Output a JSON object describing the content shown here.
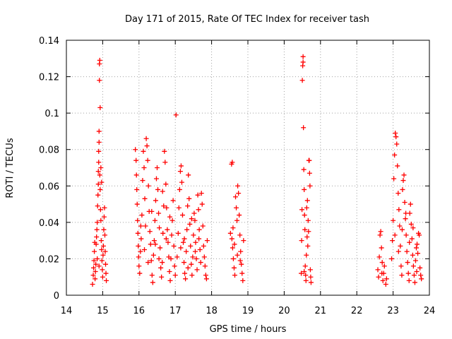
{
  "chart_data": {
    "type": "scatter",
    "title": "Day 171 of 2015, Rate Of TEC Index for receiver tash",
    "xlabel": "GPS time / hours",
    "ylabel": "ROTI / TECUs",
    "xlim": [
      14,
      24
    ],
    "ylim": [
      0,
      0.14
    ],
    "x_ticks": [
      "14",
      "15",
      "16",
      "17",
      "18",
      "19",
      "20",
      "21",
      "22",
      "23",
      "24"
    ],
    "y_ticks": [
      "0",
      "0.02",
      "0.04",
      "0.06",
      "0.08",
      "0.1",
      "0.12",
      "0.14"
    ],
    "x_tick_values": [
      14,
      15,
      16,
      17,
      18,
      19,
      20,
      21,
      22,
      23,
      24
    ],
    "y_tick_values": [
      0,
      0.02,
      0.04,
      0.06,
      0.08,
      0.1,
      0.12,
      0.14
    ],
    "grid": true,
    "marker": "+",
    "color": "#ff0000",
    "series": [
      {
        "name": "ROTI",
        "points": [
          [
            14.72,
            0.006
          ],
          [
            14.74,
            0.011
          ],
          [
            14.75,
            0.015
          ],
          [
            14.76,
            0.019
          ],
          [
            14.77,
            0.024
          ],
          [
            14.78,
            0.029
          ],
          [
            14.79,
            0.009
          ],
          [
            14.8,
            0.013
          ],
          [
            14.81,
            0.017
          ],
          [
            14.82,
            0.028
          ],
          [
            14.83,
            0.032
          ],
          [
            14.84,
            0.036
          ],
          [
            14.85,
            0.04
          ],
          [
            14.86,
            0.049
          ],
          [
            14.87,
            0.055
          ],
          [
            14.88,
            0.061
          ],
          [
            14.88,
            0.068
          ],
          [
            14.89,
            0.073
          ],
          [
            14.89,
            0.079
          ],
          [
            14.9,
            0.084
          ],
          [
            14.9,
            0.09
          ],
          [
            14.91,
            0.118
          ],
          [
            14.91,
            0.127
          ],
          [
            14.92,
            0.129
          ],
          [
            14.93,
            0.103
          ],
          [
            14.92,
            0.066
          ],
          [
            14.93,
            0.058
          ],
          [
            14.94,
            0.047
          ],
          [
            14.95,
            0.041
          ],
          [
            14.96,
            0.03
          ],
          [
            14.97,
            0.025
          ],
          [
            14.98,
            0.019
          ],
          [
            14.99,
            0.014
          ],
          [
            15.0,
            0.01
          ],
          [
            15.01,
            0.022
          ],
          [
            15.02,
            0.027
          ],
          [
            15.03,
            0.036
          ],
          [
            15.04,
            0.043
          ],
          [
            15.05,
            0.048
          ],
          [
            15.06,
            0.033
          ],
          [
            15.07,
            0.024
          ],
          [
            15.08,
            0.017
          ],
          [
            15.09,
            0.012
          ],
          [
            15.1,
            0.008
          ],
          [
            14.95,
            0.07
          ],
          [
            14.97,
            0.062
          ],
          [
            14.85,
            0.02
          ],
          [
            14.9,
            0.016
          ],
          [
            15.9,
            0.08
          ],
          [
            15.92,
            0.074
          ],
          [
            15.93,
            0.066
          ],
          [
            15.94,
            0.058
          ],
          [
            15.95,
            0.05
          ],
          [
            15.96,
            0.041
          ],
          [
            15.97,
            0.034
          ],
          [
            15.98,
            0.027
          ],
          [
            15.99,
            0.021
          ],
          [
            16.0,
            0.016
          ],
          [
            16.02,
            0.012
          ],
          [
            16.04,
            0.024
          ],
          [
            16.06,
            0.031
          ],
          [
            16.08,
            0.044
          ],
          [
            16.1,
            0.063
          ],
          [
            16.12,
            0.079
          ],
          [
            16.14,
            0.07
          ],
          [
            16.16,
            0.053
          ],
          [
            16.18,
            0.038
          ],
          [
            16.2,
            0.086
          ],
          [
            16.22,
            0.082
          ],
          [
            16.24,
            0.074
          ],
          [
            16.26,
            0.06
          ],
          [
            16.28,
            0.046
          ],
          [
            16.3,
            0.035
          ],
          [
            16.32,
            0.028
          ],
          [
            16.34,
            0.019
          ],
          [
            16.36,
            0.011
          ],
          [
            16.38,
            0.007
          ],
          [
            16.4,
            0.022
          ],
          [
            16.42,
            0.03
          ],
          [
            16.44,
            0.041
          ],
          [
            16.46,
            0.052
          ],
          [
            16.48,
            0.064
          ],
          [
            16.5,
            0.07
          ],
          [
            16.52,
            0.058
          ],
          [
            16.54,
            0.045
          ],
          [
            16.56,
            0.037
          ],
          [
            16.58,
            0.026
          ],
          [
            16.6,
            0.015
          ],
          [
            16.62,
            0.01
          ],
          [
            16.64,
            0.018
          ],
          [
            16.66,
            0.034
          ],
          [
            16.68,
            0.049
          ],
          [
            16.7,
            0.079
          ],
          [
            16.72,
            0.073
          ],
          [
            16.74,
            0.061
          ],
          [
            16.76,
            0.048
          ],
          [
            16.78,
            0.036
          ],
          [
            16.8,
            0.029
          ],
          [
            16.82,
            0.021
          ],
          [
            16.84,
            0.013
          ],
          [
            16.86,
            0.008
          ],
          [
            16.88,
            0.02
          ],
          [
            16.9,
            0.033
          ],
          [
            16.92,
            0.041
          ],
          [
            16.94,
            0.052
          ],
          [
            16.96,
            0.027
          ],
          [
            16.98,
            0.016
          ],
          [
            17.0,
            0.011
          ],
          [
            17.02,
            0.099
          ],
          [
            16.05,
            0.038
          ],
          [
            16.15,
            0.025
          ],
          [
            16.25,
            0.018
          ],
          [
            16.35,
            0.046
          ],
          [
            16.45,
            0.028
          ],
          [
            16.55,
            0.02
          ],
          [
            16.65,
            0.057
          ],
          [
            16.75,
            0.031
          ],
          [
            16.85,
            0.043
          ],
          [
            17.05,
            0.021
          ],
          [
            17.08,
            0.034
          ],
          [
            17.1,
            0.048
          ],
          [
            17.12,
            0.058
          ],
          [
            17.14,
            0.068
          ],
          [
            17.16,
            0.071
          ],
          [
            17.18,
            0.062
          ],
          [
            17.2,
            0.044
          ],
          [
            17.22,
            0.029
          ],
          [
            17.24,
            0.018
          ],
          [
            17.26,
            0.012
          ],
          [
            17.28,
            0.009
          ],
          [
            17.3,
            0.024
          ],
          [
            17.32,
            0.036
          ],
          [
            17.34,
            0.049
          ],
          [
            17.36,
            0.066
          ],
          [
            17.38,
            0.053
          ],
          [
            17.4,
            0.039
          ],
          [
            17.42,
            0.027
          ],
          [
            17.44,
            0.017
          ],
          [
            17.46,
            0.011
          ],
          [
            17.48,
            0.021
          ],
          [
            17.5,
            0.033
          ],
          [
            17.52,
            0.045
          ],
          [
            17.54,
            0.041
          ],
          [
            17.56,
            0.029
          ],
          [
            17.58,
            0.02
          ],
          [
            17.6,
            0.014
          ],
          [
            17.62,
            0.055
          ],
          [
            17.64,
            0.047
          ],
          [
            17.66,
            0.036
          ],
          [
            17.68,
            0.025
          ],
          [
            17.7,
            0.018
          ],
          [
            17.72,
            0.056
          ],
          [
            17.74,
            0.05
          ],
          [
            17.76,
            0.038
          ],
          [
            17.78,
            0.027
          ],
          [
            17.8,
            0.021
          ],
          [
            17.82,
            0.016
          ],
          [
            17.84,
            0.011
          ],
          [
            17.86,
            0.009
          ],
          [
            17.88,
            0.03
          ],
          [
            17.25,
            0.031
          ],
          [
            17.45,
            0.042
          ],
          [
            17.65,
            0.031
          ],
          [
            17.35,
            0.015
          ],
          [
            17.55,
            0.024
          ],
          [
            17.15,
            0.026
          ],
          [
            18.52,
            0.034
          ],
          [
            18.55,
            0.072
          ],
          [
            18.57,
            0.073
          ],
          [
            18.58,
            0.026
          ],
          [
            18.6,
            0.02
          ],
          [
            18.62,
            0.015
          ],
          [
            18.64,
            0.011
          ],
          [
            18.66,
            0.054
          ],
          [
            18.68,
            0.048
          ],
          [
            18.7,
            0.041
          ],
          [
            18.72,
            0.06
          ],
          [
            18.74,
            0.056
          ],
          [
            18.76,
            0.044
          ],
          [
            18.78,
            0.033
          ],
          [
            18.8,
            0.024
          ],
          [
            18.82,
            0.017
          ],
          [
            18.84,
            0.012
          ],
          [
            18.86,
            0.008
          ],
          [
            18.88,
            0.03
          ],
          [
            18.56,
            0.031
          ],
          [
            18.63,
            0.028
          ],
          [
            18.71,
            0.022
          ],
          [
            18.79,
            0.019
          ],
          [
            18.59,
            0.037
          ],
          [
            20.47,
            0.012
          ],
          [
            20.48,
            0.03
          ],
          [
            20.49,
            0.047
          ],
          [
            20.5,
            0.118
          ],
          [
            20.51,
            0.126
          ],
          [
            20.52,
            0.131
          ],
          [
            20.52,
            0.128
          ],
          [
            20.53,
            0.092
          ],
          [
            20.54,
            0.069
          ],
          [
            20.55,
            0.058
          ],
          [
            20.56,
            0.044
          ],
          [
            20.57,
            0.036
          ],
          [
            20.58,
            0.016
          ],
          [
            20.59,
            0.011
          ],
          [
            20.6,
            0.008
          ],
          [
            20.62,
            0.048
          ],
          [
            20.64,
            0.052
          ],
          [
            20.66,
            0.041
          ],
          [
            20.68,
            0.074
          ],
          [
            20.69,
            0.074
          ],
          [
            20.7,
            0.067
          ],
          [
            20.71,
            0.06
          ],
          [
            20.72,
            0.014
          ],
          [
            20.73,
            0.01
          ],
          [
            20.74,
            0.007
          ],
          [
            20.61,
            0.022
          ],
          [
            20.63,
            0.032
          ],
          [
            20.65,
            0.027
          ],
          [
            20.55,
            0.013
          ],
          [
            20.67,
            0.035
          ],
          [
            22.58,
            0.014
          ],
          [
            22.6,
            0.01
          ],
          [
            22.62,
            0.021
          ],
          [
            22.64,
            0.033
          ],
          [
            22.66,
            0.035
          ],
          [
            22.68,
            0.026
          ],
          [
            22.7,
            0.018
          ],
          [
            22.72,
            0.008
          ],
          [
            22.74,
            0.012
          ],
          [
            22.76,
            0.016
          ],
          [
            22.8,
            0.006
          ],
          [
            22.82,
            0.009
          ],
          [
            22.96,
            0.02
          ],
          [
            22.98,
            0.03
          ],
          [
            23.0,
            0.041
          ],
          [
            23.02,
            0.064
          ],
          [
            23.04,
            0.077
          ],
          [
            23.06,
            0.089
          ],
          [
            23.08,
            0.087
          ],
          [
            23.1,
            0.083
          ],
          [
            23.12,
            0.071
          ],
          [
            23.14,
            0.056
          ],
          [
            23.16,
            0.047
          ],
          [
            23.18,
            0.038
          ],
          [
            23.2,
            0.027
          ],
          [
            23.22,
            0.016
          ],
          [
            23.24,
            0.011
          ],
          [
            23.26,
            0.058
          ],
          [
            23.28,
            0.063
          ],
          [
            23.3,
            0.066
          ],
          [
            23.32,
            0.051
          ],
          [
            23.34,
            0.042
          ],
          [
            23.36,
            0.033
          ],
          [
            23.38,
            0.024
          ],
          [
            23.4,
            0.018
          ],
          [
            23.42,
            0.012
          ],
          [
            23.44,
            0.008
          ],
          [
            23.46,
            0.045
          ],
          [
            23.48,
            0.05
          ],
          [
            23.5,
            0.039
          ],
          [
            23.52,
            0.031
          ],
          [
            23.54,
            0.022
          ],
          [
            23.56,
            0.016
          ],
          [
            23.58,
            0.011
          ],
          [
            23.6,
            0.007
          ],
          [
            23.62,
            0.019
          ],
          [
            23.64,
            0.026
          ],
          [
            23.66,
            0.028
          ],
          [
            23.68,
            0.023
          ],
          [
            23.7,
            0.034
          ],
          [
            23.72,
            0.033
          ],
          [
            23.74,
            0.015
          ],
          [
            23.76,
            0.011
          ],
          [
            23.78,
            0.009
          ],
          [
            23.15,
            0.024
          ],
          [
            23.25,
            0.036
          ],
          [
            23.35,
            0.045
          ],
          [
            23.45,
            0.029
          ],
          [
            23.55,
            0.037
          ],
          [
            23.65,
            0.013
          ],
          [
            23.05,
            0.033
          ],
          [
            22.69,
            0.012
          ]
        ]
      }
    ]
  }
}
